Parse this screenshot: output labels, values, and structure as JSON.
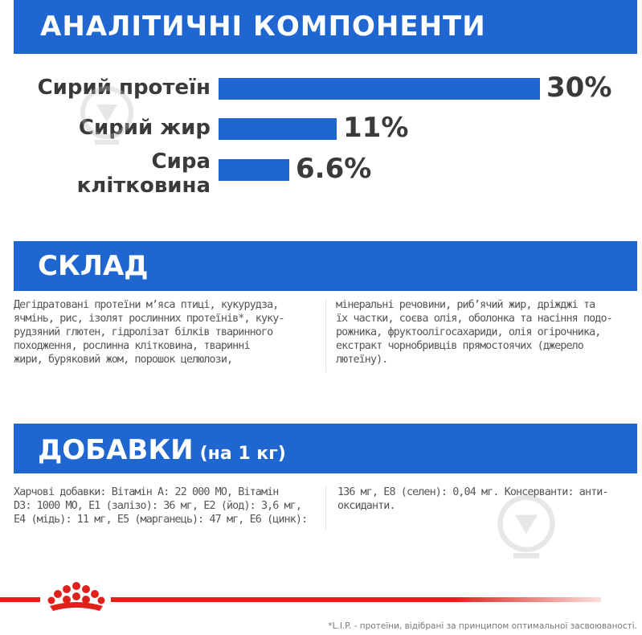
{
  "analytics": {
    "title": "АНАЛІТИЧНІ КОМПОНЕНТИ",
    "items": [
      {
        "label_lines": [
          "Сирий протеїн"
        ],
        "value": 30,
        "value_text": "30%"
      },
      {
        "label_lines": [
          "Сирий жир"
        ],
        "value": 11,
        "value_text": "11%"
      },
      {
        "label_lines": [
          "Сира",
          "клітковина"
        ],
        "value": 6.6,
        "value_text": "6.6%"
      }
    ]
  },
  "composition": {
    "title": "СКЛАД",
    "left_lines": [
      "Дегідратовані протеїни м’яса птиці, кукурудза,",
      "ячмінь, рис, ізолят рослинних протеїнів*, куку-",
      "рудзяний глютен, гідролізат білків тваринного",
      "походження, рослинна клітковина, тваринні",
      "жири, буряковий жом, порошок целюлози,"
    ],
    "right_lines": [
      "мінеральні речовини, риб’ячий жир, дріжджі та",
      "їх частки, соєва олія, оболонка та насіння подо-",
      "рожника, фруктоолігосахариди, олія огірочника,",
      "екстракт чорнобривців прямостоячих (джерело",
      "лютеїну)."
    ]
  },
  "additives": {
    "title": "ДОБАВКИ",
    "unit": "(на 1 кг)",
    "left_lines": [
      "Харчові добавки: Вітамін А: 22 000 МО, Вітамін",
      "D3: 1000 МО, Е1 (залізо): 36 мг, Е2 (йод): 3,6 мг,",
      "Е4 (мідь): 11 мг, Е5 (марганець): 47 мг, Е6 (цинк):"
    ],
    "right_lines": [
      "136 мг, Е8 (селен): 0,04 мг. Консерванти: анти-",
      "оксиданти."
    ]
  },
  "footnote": "*L.I.P. - протеїни, відібрані за принципом оптимальної засвоюваності.",
  "colors": {
    "brand_blue": "#1f66d1",
    "brand_red": "#e0211b"
  },
  "icons": [
    "royal-canin-crown-logo",
    "download-watermark-icon"
  ]
}
